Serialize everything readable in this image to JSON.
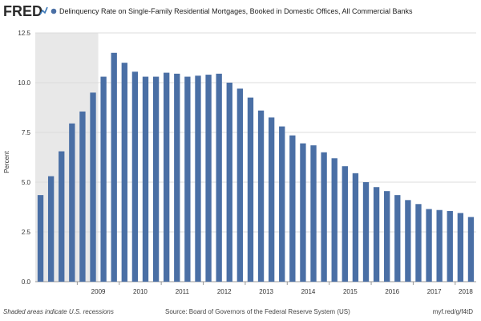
{
  "header": {
    "logo": "FRED",
    "legend_label": "Delinquency Rate on Single-Family Residential Mortgages, Booked in Domestic Offices, All Commercial Banks"
  },
  "footer": {
    "recession_note": "Shaded areas indicate U.S. recessions",
    "source": "Source: Board of Governors of the Federal Reserve System (US)",
    "url": "myf.red/g/f4tD"
  },
  "colors": {
    "bar": "#4a6fa5",
    "recession": "#e8e8e8",
    "grid": "#dddddd",
    "logo_accent": "#3a77b7"
  },
  "chart_data": {
    "type": "bar",
    "ylabel": "Percent",
    "xlabel": "",
    "ylim": [
      0,
      12.5
    ],
    "yticks": [
      "0.0",
      "2.5",
      "5.0",
      "7.5",
      "10.0",
      "12.5"
    ],
    "x_tick_labels": [
      "2009",
      "2010",
      "2011",
      "2012",
      "2013",
      "2014",
      "2015",
      "2016",
      "2017",
      "2018"
    ],
    "categories": [
      "2008Q1",
      "2008Q2",
      "2008Q3",
      "2008Q4",
      "2009Q1",
      "2009Q2",
      "2009Q3",
      "2009Q4",
      "2010Q1",
      "2010Q2",
      "2010Q3",
      "2010Q4",
      "2011Q1",
      "2011Q2",
      "2011Q3",
      "2011Q4",
      "2012Q1",
      "2012Q2",
      "2012Q3",
      "2012Q4",
      "2013Q1",
      "2013Q2",
      "2013Q3",
      "2013Q4",
      "2014Q1",
      "2014Q2",
      "2014Q3",
      "2014Q4",
      "2015Q1",
      "2015Q2",
      "2015Q3",
      "2015Q4",
      "2016Q1",
      "2016Q2",
      "2016Q3",
      "2016Q4",
      "2017Q1",
      "2017Q2",
      "2017Q3",
      "2017Q4",
      "2018Q1",
      "2018Q2"
    ],
    "values": [
      4.35,
      5.3,
      6.55,
      7.95,
      8.55,
      9.5,
      10.3,
      11.5,
      11.0,
      10.55,
      10.3,
      10.3,
      10.5,
      10.45,
      10.3,
      10.35,
      10.4,
      10.45,
      10.0,
      9.7,
      9.25,
      8.6,
      8.25,
      7.8,
      7.35,
      6.95,
      6.85,
      6.5,
      6.2,
      5.8,
      5.45,
      5.0,
      4.75,
      4.55,
      4.35,
      4.1,
      3.9,
      3.65,
      3.6,
      3.55,
      3.45,
      3.25
    ],
    "recessions": [
      {
        "start": "2008Q1",
        "end": "2009Q2"
      }
    ],
    "grid": true
  }
}
